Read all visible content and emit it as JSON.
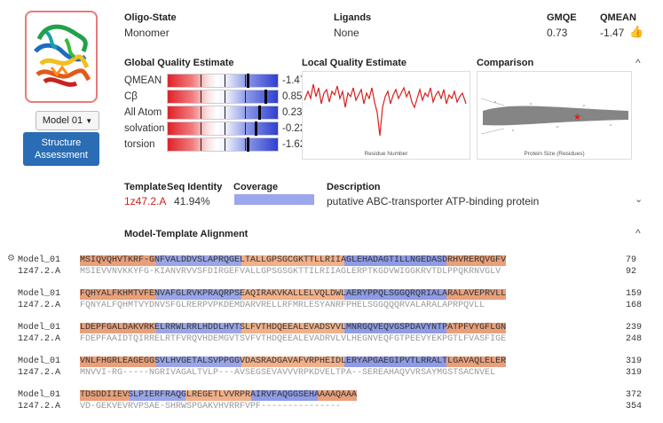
{
  "summary": {
    "oligo_label": "Oligo-State",
    "oligo_value": "Monomer",
    "ligands_label": "Ligands",
    "ligands_value": "None",
    "gmqe_label": "GMQE",
    "gmqe_value": "0.73",
    "qmean_label": "QMEAN",
    "qmean_value": "-1.47"
  },
  "model_button": "Model 01",
  "structure_button": "Structure Assessment",
  "gqe": {
    "title": "Global Quality Estimate",
    "rows": [
      {
        "name": "QMEAN",
        "value": "-1.47",
        "level": 0.72
      },
      {
        "name": "Cβ",
        "value": "0.85",
        "level": 0.88
      },
      {
        "name": "All Atom",
        "value": "0.23",
        "level": 0.82
      },
      {
        "name": "solvation",
        "value": "-0.22",
        "level": 0.79
      },
      {
        "name": "torsion",
        "value": "-1.62",
        "level": 0.72
      }
    ]
  },
  "lqe": {
    "title": "Local Quality Estimate",
    "xlabel": "Residue Number"
  },
  "comparison": {
    "title": "Comparison",
    "xlabel": "Protein Size (Residues)"
  },
  "template": {
    "template_label": "Template",
    "template_value": "1z47.2.A",
    "identity_label": "Seq Identity",
    "identity_value": "41.94%",
    "coverage_label": "Coverage",
    "coverage_level": 1.0,
    "description_label": "Description",
    "description_value": "putative ABC-transporter ATP-binding protein"
  },
  "alignment": {
    "title": "Model-Template Alignment",
    "blocks": [
      {
        "model_name": "Model_01",
        "model_seq": "MSIQVQHVTKRF-GNFVALDDVSLAPRQGELTALLGPSGCGKTTLLRIIAGLEHADAGTILLNGEDASDRHVRERQVGFV",
        "model_no": "79",
        "tpl_name": "1z47.2.A",
        "tpl_seq": "MSIEVVNVKKYFG-KIANVRVVSFDIRGEFVALLGPSGSGKTTILRIIAGLERPTKGDVWIGGKRVTDLPPQKRNVGLV",
        "tpl_no": "92"
      },
      {
        "model_name": "Model_01",
        "model_seq": "FQHYALFKHMTVFENVAFGLRVKPRAQRPSEAQIRAKVKALLELVQLDWLAERYPPQLSGGQRQRIALARALAVEPRVLL",
        "model_no": "159",
        "tpl_name": "1z47.2.A",
        "tpl_seq": "FQNYALFQHMTVYDNVSFGLRERPVPKDEMDARVRELLRFMRLESYANRFPHELSGGQQQRVALARALAPRPQVLL",
        "tpl_no": "168"
      },
      {
        "model_name": "Model_01",
        "model_seq": "LDEPFGALDAKVRKELRRWLRRLHDDLHVTSLFVTHDQEEALEVADSVVLMNRGQVEQVGSPDAVYNTPATPFVYGFLGN",
        "model_no": "239",
        "tpl_name": "1z47.2.A",
        "tpl_seq": "FDEPFAAIDTQIRRELRTFVRQVHDEMGVTSVFVTHDQEEALEVADRVLVLHEGNVEQFGTPEEVYEKPGTLFVASFIGE",
        "tpl_no": "248"
      },
      {
        "model_name": "Model_01",
        "model_seq": "VNLFHGRLEAGEGGSVLHVGETALSVPPGGVDASRADGAVAFVRPHEIDLERYAPGAEGIPVTLRRALTLGAVAQLELER",
        "model_no": "319",
        "tpl_name": "1z47.2.A",
        "tpl_seq": "MNVVI-RG-----NGRIVAGALTVLP---AVSEGSEVAVVVRPKDVELTPA--SEREAHAQVVRSAYMGSTSACNVEL",
        "tpl_no": "319"
      },
      {
        "model_name": "Model_01",
        "model_seq": "TDSDDIIEVSLPIERFRAQGLREGETLVVRPRAIRVFAQGGSEHAAAAQAAA",
        "model_no": "372",
        "tpl_name": "1z47.2.A",
        "tpl_seq": "VD-GEKVEVRVPSAE-SHRWSPGAKVHVRRFVPF---------------",
        "tpl_no": "354"
      }
    ]
  }
}
